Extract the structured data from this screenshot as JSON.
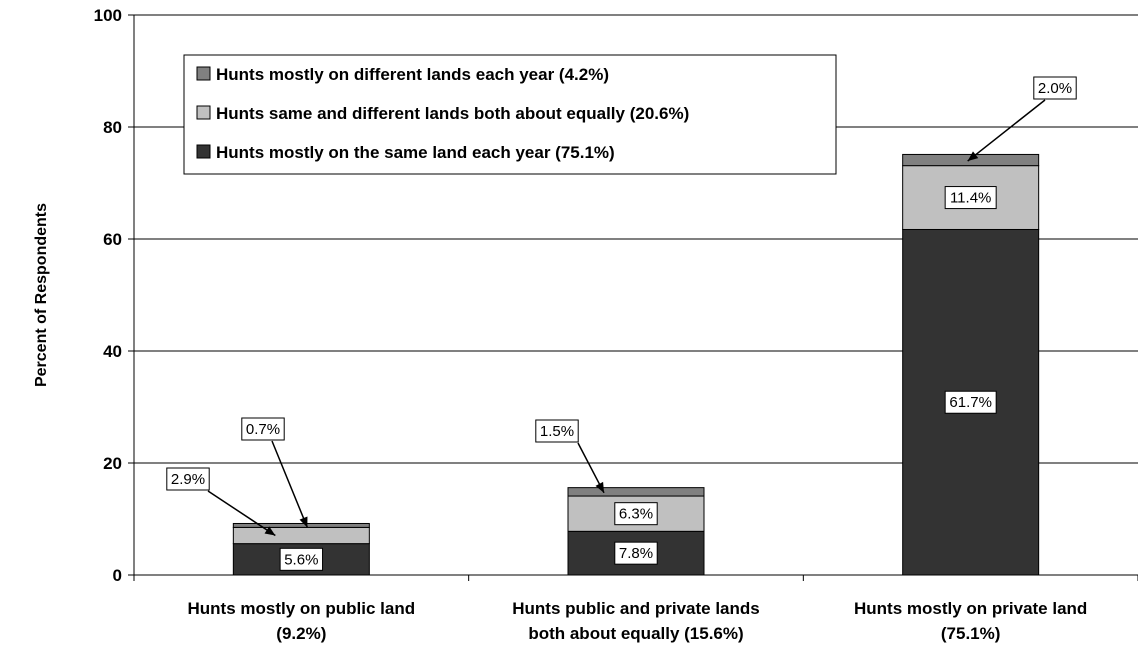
{
  "chart_data": {
    "type": "bar",
    "stacked": true,
    "ylabel": "Percent of Respondents",
    "ylim": [
      0,
      100
    ],
    "yticks": [
      0,
      20,
      40,
      60,
      80,
      100
    ],
    "grid": true,
    "legend_position": "top-left",
    "categories": [
      [
        "Hunts mostly on public land",
        "(9.2%)"
      ],
      [
        "Hunts public and private lands",
        "both about equally (15.6%)"
      ],
      [
        "Hunts mostly on private land",
        "(75.1%)"
      ]
    ],
    "series": [
      {
        "name": "Hunts mostly on the same land each year (75.1%)",
        "color": "#333333",
        "values": [
          5.6,
          7.8,
          61.7
        ],
        "labels": [
          "5.6%",
          "7.8%",
          "61.7%"
        ]
      },
      {
        "name": "Hunts same and different lands both about equally (20.6%)",
        "color": "#c0c0c0",
        "values": [
          2.9,
          6.3,
          11.4
        ],
        "labels": [
          "2.9%",
          "6.3%",
          "11.4%"
        ]
      },
      {
        "name": "Hunts mostly on different lands each year (4.2%)",
        "color": "#808080",
        "values": [
          0.7,
          1.5,
          2.0
        ],
        "labels": [
          "0.7%",
          "1.5%",
          "2.0%"
        ]
      }
    ],
    "legend_order": [
      2,
      1,
      0
    ]
  }
}
